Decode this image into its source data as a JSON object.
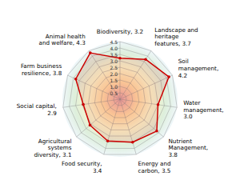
{
  "chart_data": {
    "type": "radar",
    "categories": [
      "Biodiversity, 3.2",
      "Landscape and\nheritage\nfeatures, 3.7",
      "Soil\nmanagement,\n4.2",
      "Water\nmanagement,\n3.0",
      "Nutrient\nManagement,\n3.8",
      "Energy and\ncarbon, 3.5",
      "Food security,\n3.4",
      "Agricultural\nsystems\ndiversity, 3.1",
      "Social capital,\n2.9",
      "Farm business\nresilience, 3.8",
      "Animal health\nand welfare, 4.3"
    ],
    "values": [
      3.2,
      3.7,
      4.2,
      3.0,
      3.8,
      3.5,
      3.4,
      3.1,
      2.9,
      3.8,
      4.3
    ],
    "color": "#cc0000",
    "ylim": [
      0,
      4.5
    ],
    "yticks": [
      0.5,
      {
        "value": 1,
        "label": "1.0"
      },
      1.5,
      {
        "value": 2,
        "label": "2.0"
      },
      2.5,
      {
        "value": 3,
        "label": "3.0"
      },
      3.5,
      {
        "value": 4,
        "label": "4.0"
      },
      4.5
    ],
    "grid": true
  }
}
